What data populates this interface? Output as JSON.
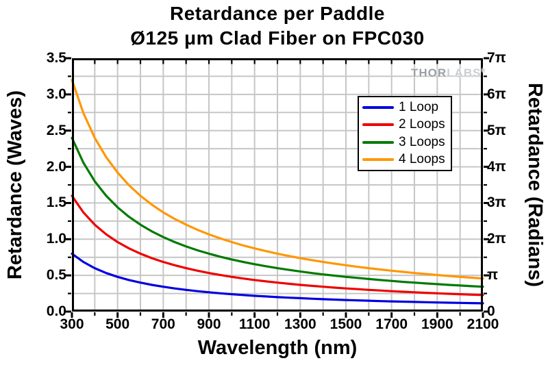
{
  "title": {
    "line1": "Retardance per Paddle",
    "line2": "Ø125 μm Clad Fiber on FPC030"
  },
  "watermark": {
    "thor": "THOR",
    "labs": "LABS",
    "registered": "®"
  },
  "axes": {
    "x": {
      "label": "Wavelength (nm)",
      "min": 300,
      "max": 2100,
      "major_tick_values": [
        300,
        500,
        700,
        900,
        1100,
        1300,
        1500,
        1700,
        1900,
        2100
      ],
      "tick_labels": [
        "300",
        "500",
        "700",
        "900",
        "1100",
        "1300",
        "1500",
        "1700",
        "1900",
        "2100"
      ],
      "minor_tick_step": 100
    },
    "y_left": {
      "label": "Retardance (Waves)",
      "min": 0.0,
      "max": 3.5,
      "major_tick_values": [
        0.0,
        0.5,
        1.0,
        1.5,
        2.0,
        2.5,
        3.0,
        3.5
      ],
      "tick_labels": [
        "0.0",
        "0.5",
        "1.0",
        "1.5",
        "2.0",
        "2.5",
        "3.0",
        "3.5"
      ],
      "minor_tick_step": 0.25
    },
    "y_right": {
      "label": "Retardance (Radians)",
      "min_pi": 0,
      "max_pi": 7,
      "major_tick_values_pi": [
        0,
        1,
        2,
        3,
        4,
        5,
        6,
        7
      ],
      "tick_labels": [
        "0",
        "π",
        "2π",
        "3π",
        "4π",
        "5π",
        "6π",
        "7π"
      ],
      "minor_tick_step_pi": 0.5
    }
  },
  "chart_data": {
    "type": "line",
    "title": "Retardance per Paddle",
    "subtitle": "Ø125 μm Clad Fiber on FPC030",
    "xlabel": "Wavelength (nm)",
    "ylabel_left": "Retardance (Waves)",
    "ylabel_right": "Retardance (Radians)",
    "xlim": [
      300,
      2100
    ],
    "ylim_waves": [
      0,
      3.5
    ],
    "ylim_radians_pi": [
      0,
      7
    ],
    "grid": "minor gridlines on, every 100 nm and 0.25 waves, light gray",
    "legend_position": "upper right inside plot",
    "relation": "retardance ≈ 0.8 waves × loops × (300 / wavelength_nm); right axis radians = waves × 2π",
    "x_wavelength_nm": [
      300,
      350,
      400,
      450,
      500,
      550,
      600,
      650,
      700,
      750,
      800,
      850,
      900,
      950,
      1000,
      1050,
      1100,
      1150,
      1200,
      1250,
      1300,
      1350,
      1400,
      1450,
      1500,
      1550,
      1600,
      1650,
      1700,
      1750,
      1800,
      1850,
      1900,
      1950,
      2000,
      2050,
      2100
    ],
    "series": [
      {
        "name": "1 Loop",
        "color": "#0000E0",
        "values_waves": [
          0.8,
          0.686,
          0.6,
          0.533,
          0.48,
          0.436,
          0.4,
          0.369,
          0.343,
          0.32,
          0.3,
          0.282,
          0.267,
          0.253,
          0.24,
          0.229,
          0.218,
          0.209,
          0.2,
          0.192,
          0.185,
          0.178,
          0.171,
          0.166,
          0.16,
          0.155,
          0.15,
          0.145,
          0.141,
          0.137,
          0.133,
          0.13,
          0.126,
          0.123,
          0.12,
          0.117,
          0.114
        ]
      },
      {
        "name": "2 Loops",
        "color": "#EE0000",
        "values_waves": [
          1.6,
          1.371,
          1.2,
          1.067,
          0.96,
          0.873,
          0.8,
          0.738,
          0.686,
          0.64,
          0.6,
          0.565,
          0.533,
          0.505,
          0.48,
          0.457,
          0.436,
          0.417,
          0.4,
          0.384,
          0.369,
          0.356,
          0.343,
          0.331,
          0.32,
          0.31,
          0.3,
          0.291,
          0.282,
          0.274,
          0.267,
          0.259,
          0.253,
          0.246,
          0.24,
          0.234,
          0.229
        ]
      },
      {
        "name": "3 Loops",
        "color": "#007A00",
        "values_waves": [
          2.4,
          2.057,
          1.8,
          1.6,
          1.44,
          1.309,
          1.2,
          1.108,
          1.029,
          0.96,
          0.9,
          0.847,
          0.8,
          0.758,
          0.72,
          0.686,
          0.655,
          0.626,
          0.6,
          0.576,
          0.554,
          0.533,
          0.514,
          0.497,
          0.48,
          0.465,
          0.45,
          0.436,
          0.424,
          0.411,
          0.4,
          0.389,
          0.379,
          0.369,
          0.36,
          0.351,
          0.343
        ]
      },
      {
        "name": "4 Loops",
        "color": "#FF9700",
        "values_waves": [
          3.2,
          2.743,
          2.4,
          2.133,
          1.92,
          1.745,
          1.6,
          1.477,
          1.371,
          1.28,
          1.2,
          1.129,
          1.067,
          1.011,
          0.96,
          0.914,
          0.873,
          0.835,
          0.8,
          0.768,
          0.738,
          0.711,
          0.686,
          0.662,
          0.64,
          0.619,
          0.6,
          0.582,
          0.565,
          0.549,
          0.533,
          0.519,
          0.505,
          0.492,
          0.48,
          0.468,
          0.457
        ]
      }
    ]
  },
  "colors": {
    "background": "#FFFFFF",
    "axis_frame": "#000000",
    "gridline": "#C6C6C6",
    "text": "#000000",
    "watermark_dark": "#9AA0A5",
    "watermark_light": "#CACED1"
  }
}
